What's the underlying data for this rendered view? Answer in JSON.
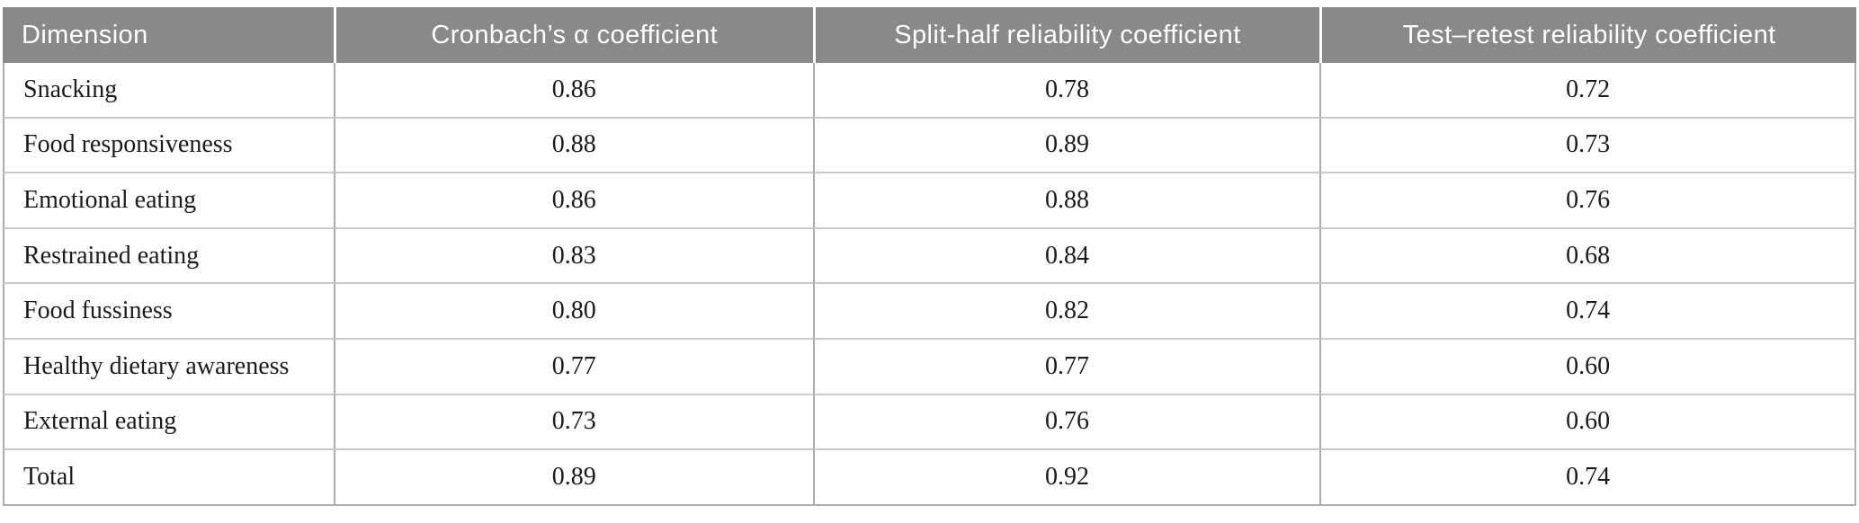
{
  "page": {
    "background": "#ffffff"
  },
  "table": {
    "columns": [
      "Dimension",
      "Cronbach’s α coefficient",
      "Split-half reliability coefficient",
      "Test–retest reliability coefficient"
    ],
    "rows": [
      {
        "dimension": "Snacking",
        "values": [
          "0.86",
          "0.78",
          "0.72"
        ]
      },
      {
        "dimension": "Food responsiveness",
        "values": [
          "0.88",
          "0.89",
          "0.73"
        ]
      },
      {
        "dimension": "Emotional eating",
        "values": [
          "0.86",
          "0.88",
          "0.76"
        ]
      },
      {
        "dimension": "Restrained eating",
        "values": [
          "0.83",
          "0.84",
          "0.68"
        ]
      },
      {
        "dimension": "Food fussiness",
        "values": [
          "0.80",
          "0.82",
          "0.74"
        ]
      },
      {
        "dimension": "Healthy dietary awareness",
        "values": [
          "0.77",
          "0.77",
          "0.60"
        ]
      },
      {
        "dimension": "External eating",
        "values": [
          "0.73",
          "0.76",
          "0.60"
        ]
      },
      {
        "dimension": "Total",
        "values": [
          "0.89",
          "0.92",
          "0.74"
        ]
      }
    ],
    "colors": {
      "header_background": "#898989",
      "header_text": "#ffffff",
      "body_text": "#1b1b1b",
      "row_divider": "#cacaca",
      "column_divider": "#acacac",
      "outer_border": "#b0b0b0"
    }
  }
}
